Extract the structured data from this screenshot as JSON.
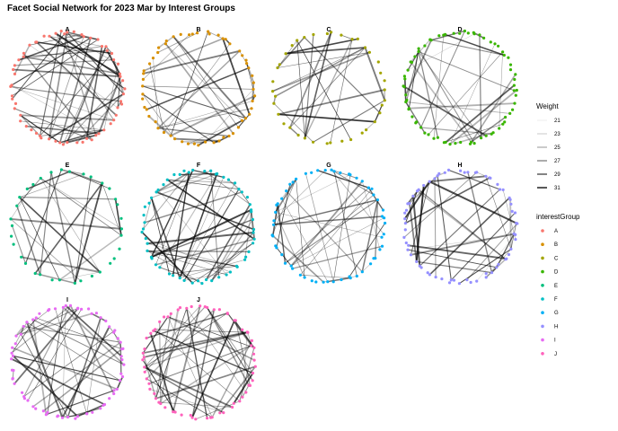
{
  "chart_data": {
    "type": "network",
    "title": "Facet Social Network for 2023 Mar by Interest Groups",
    "facets": [
      {
        "name": "A",
        "color": "#F8766D",
        "nodes": 62,
        "edges": 58
      },
      {
        "name": "B",
        "color": "#D89000",
        "nodes": 56,
        "edges": 44
      },
      {
        "name": "C",
        "color": "#A3A500",
        "nodes": 38,
        "edges": 30
      },
      {
        "name": "D",
        "color": "#39B600",
        "nodes": 70,
        "edges": 34
      },
      {
        "name": "E",
        "color": "#00BF7D",
        "nodes": 34,
        "edges": 30
      },
      {
        "name": "F",
        "color": "#00BFC4",
        "nodes": 58,
        "edges": 52
      },
      {
        "name": "G",
        "color": "#00B0F6",
        "nodes": 56,
        "edges": 44
      },
      {
        "name": "H",
        "color": "#9590FF",
        "nodes": 66,
        "edges": 40
      },
      {
        "name": "I",
        "color": "#E76BF3",
        "nodes": 70,
        "edges": 46
      },
      {
        "name": "J",
        "color": "#FF62BC",
        "nodes": 64,
        "edges": 52
      }
    ],
    "weight_legend": {
      "title": "Weight",
      "values": [
        "21",
        "23",
        "25",
        "27",
        "29",
        "31"
      ]
    },
    "group_legend": {
      "title": "interestGroup",
      "values": [
        "A",
        "B",
        "C",
        "D",
        "E",
        "F",
        "G",
        "H",
        "I",
        "J"
      ]
    }
  }
}
